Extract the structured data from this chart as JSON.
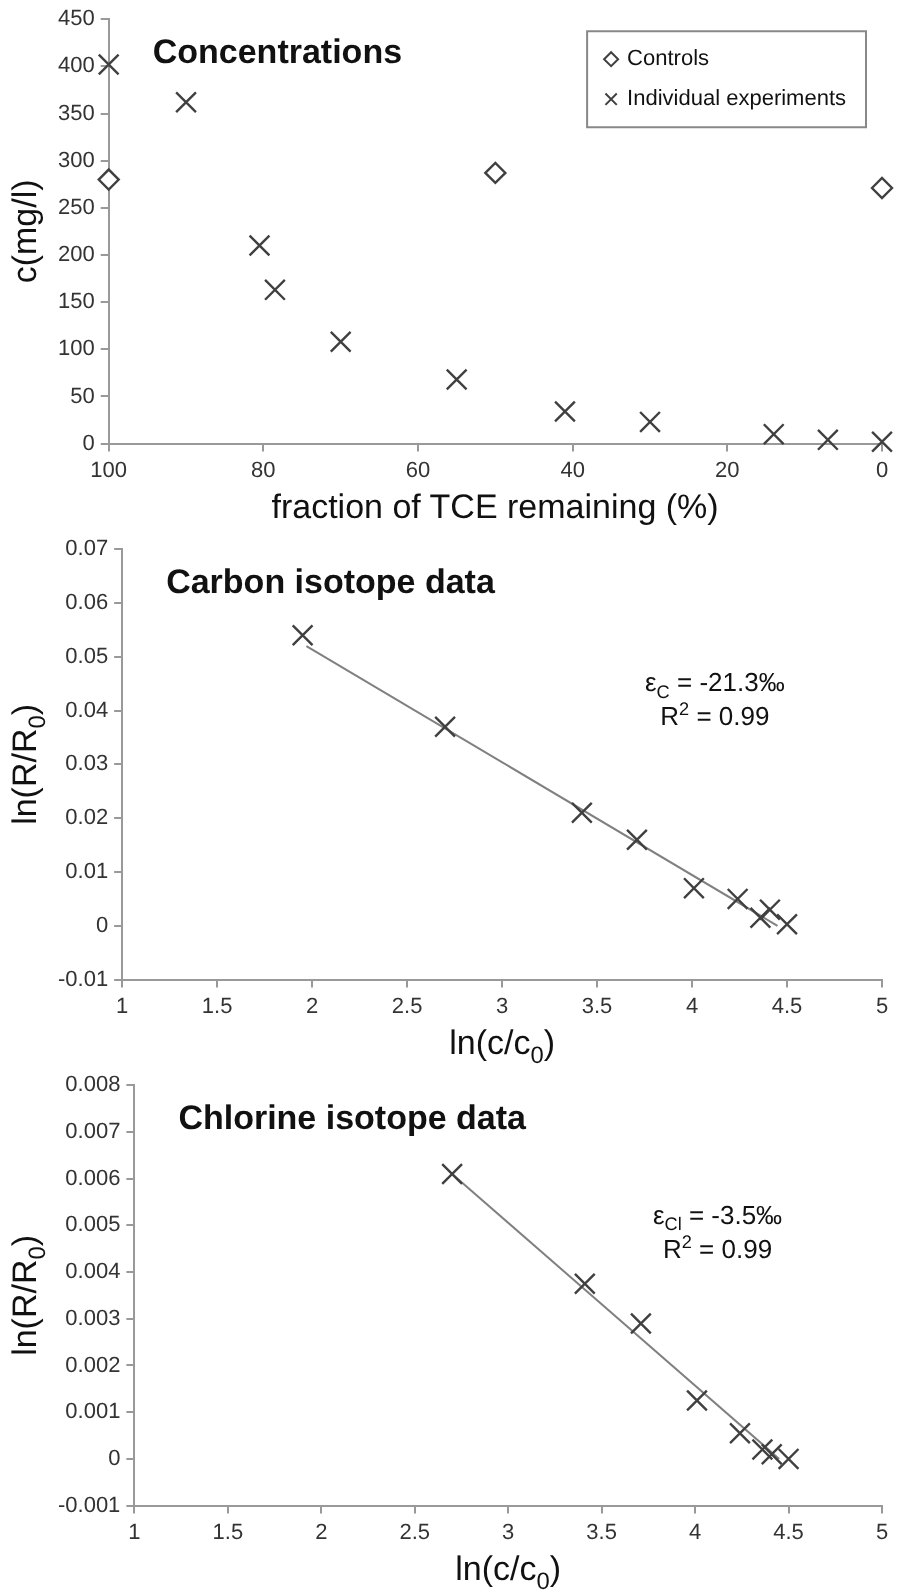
{
  "chart_data": [
    {
      "type": "scatter",
      "title": "Concentrations",
      "xlabel": "fraction of TCE remaining (%)",
      "ylabel": "c(mg/l)",
      "xlim": [
        100,
        0
      ],
      "xticks": [
        100,
        80,
        60,
        40,
        20,
        0
      ],
      "ylim": [
        0,
        450
      ],
      "yticks": [
        0,
        50,
        100,
        150,
        200,
        250,
        300,
        350,
        400,
        450
      ],
      "grid": false,
      "legend": "top right",
      "series": [
        {
          "name": "Controls",
          "color": "#404040",
          "marker": "diamond",
          "x": [
            100,
            50,
            0
          ],
          "values": [
            280,
            287,
            271
          ]
        },
        {
          "name": "Individual experiments",
          "color": "#404040",
          "marker": "cross",
          "x": [
            100,
            90,
            80.5,
            78.5,
            70,
            55,
            41,
            30,
            14,
            7,
            0
          ],
          "values": [
            402,
            362,
            210,
            163,
            108,
            68,
            34,
            23,
            10,
            4,
            2
          ]
        }
      ]
    },
    {
      "type": "scatter",
      "title": "Carbon isotope data",
      "xlabel": "ln(c/c$_{0}$)",
      "ylabel": "ln(R/R$_{0}$)",
      "xlim": [
        1,
        5
      ],
      "xticks": [
        1,
        1.5,
        2,
        2.5,
        3,
        3.5,
        4,
        4.5,
        5
      ],
      "ylim": [
        -0.01,
        0.07
      ],
      "yticks": [
        -0.01,
        0,
        0.01,
        0.02,
        0.03,
        0.04,
        0.05,
        0.06,
        0.07
      ],
      "grid": false,
      "annotations": [
        "ε$_{C}$ = -21.3‰",
        "R$^{2}$ = 0.99"
      ],
      "series": [
        {
          "color": "#404040",
          "marker": "cross",
          "x": [
            1.95,
            2.7,
            3.42,
            3.71,
            4.01,
            4.24,
            4.36,
            4.41,
            4.5
          ],
          "values": [
            0.054,
            0.037,
            0.021,
            0.016,
            0.007,
            0.005,
            0.0015,
            0.003,
            0.0003
          ]
        },
        {
          "type": "line",
          "color": "#808080",
          "marker": "none",
          "x": [
            1.97,
            4.45
          ],
          "values": [
            0.052,
            0
          ]
        }
      ]
    },
    {
      "type": "scatter",
      "title": "Chlorine isotope data",
      "xlabel": "ln(c/c$_{0}$)",
      "ylabel": "ln(R/R$_{0}$)",
      "xlim": [
        1,
        5
      ],
      "xticks": [
        1,
        1.5,
        2,
        2.5,
        3,
        3.5,
        4,
        4.5,
        5
      ],
      "ylim": [
        -0.001,
        0.008
      ],
      "yticks": [
        -0.001,
        0,
        0.001,
        0.002,
        0.003,
        0.004,
        0.005,
        0.006,
        0.007,
        0.008
      ],
      "grid": false,
      "annotations": [
        "ε$_{Cl}$ = -3.5‰",
        "R$^{2}$ = 0.99"
      ],
      "series": [
        {
          "color": "#404040",
          "marker": "cross",
          "x": [
            2.7,
            3.41,
            3.71,
            4.01,
            4.24,
            4.36,
            4.41,
            4.5
          ],
          "values": [
            0.0061,
            0.00375,
            0.0029,
            0.00125,
            0.00055,
            0.0002,
            0.0001,
            0
          ]
        },
        {
          "type": "line",
          "color": "#808080",
          "marker": "none",
          "x": [
            2.7,
            4.45
          ],
          "values": [
            0.0061,
            0
          ]
        }
      ]
    }
  ]
}
